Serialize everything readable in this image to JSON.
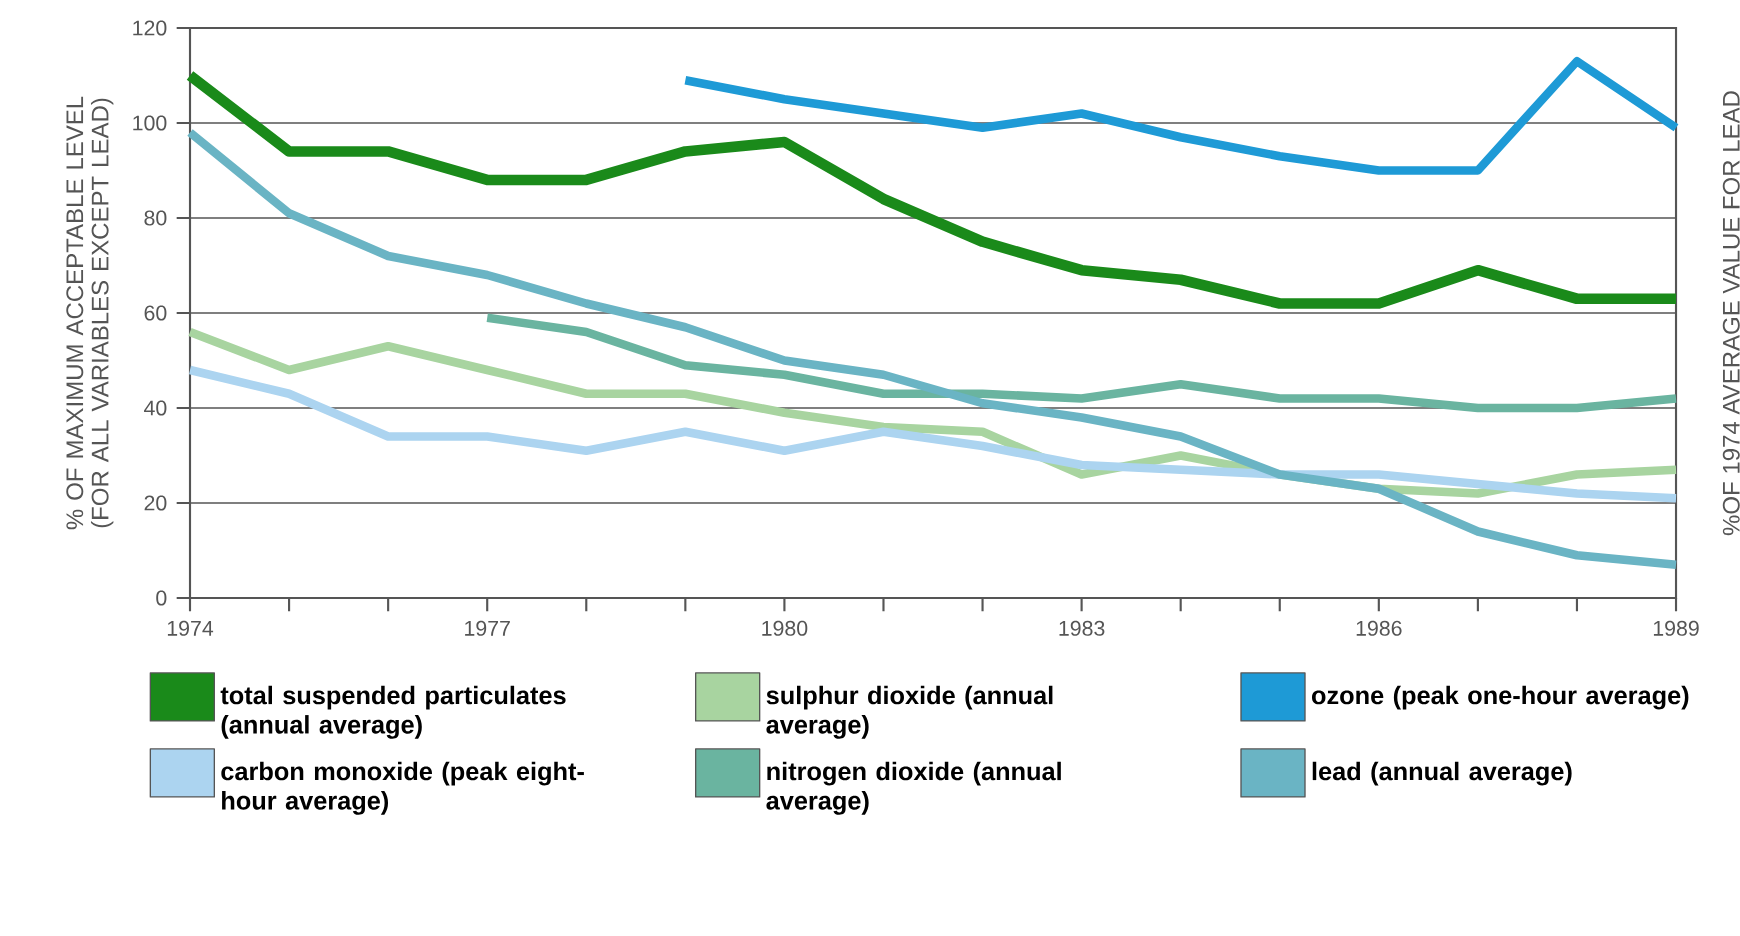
{
  "chart_data": {
    "type": "line",
    "ylabel": "% OF MAXIMUM ACCEPTABLE LEVEL (FOR ALL VARIABLES EXCEPT LEAD)",
    "y2label": "%OF 1974 AVERAGE VALUE FOR LEAD",
    "x": [
      1974,
      1975,
      1976,
      1977,
      1978,
      1979,
      1980,
      1981,
      1982,
      1983,
      1984,
      1985,
      1986,
      1987,
      1988,
      1989
    ],
    "xlim": [
      1974,
      1989
    ],
    "xticks": [
      1974,
      {
        "value": 1975,
        "label": null
      },
      {
        "value": 1976,
        "label": null
      },
      1977,
      {
        "value": 1978,
        "label": null
      },
      {
        "value": 1979,
        "label": null
      },
      1980,
      {
        "value": 1981,
        "label": null
      },
      {
        "value": 1982,
        "label": null
      },
      1983,
      {
        "value": 1984,
        "label": null
      },
      {
        "value": 1985,
        "label": null
      },
      1986,
      {
        "value": 1987,
        "label": null
      },
      {
        "value": 1988,
        "label": null
      },
      1989
    ],
    "ylim": [
      0,
      120
    ],
    "yticks": [
      0,
      20,
      40,
      60,
      80,
      100,
      120
    ],
    "grid": "y",
    "legend": "bottom",
    "marker": "none",
    "line_style": "solid",
    "series": [
      {
        "name": "total suspended particulates (annual average)",
        "color": "#1a8a1a",
        "values": [
          110,
          94,
          94,
          88,
          88,
          94,
          96,
          84,
          75,
          69,
          67,
          62,
          62,
          69,
          63,
          63
        ]
      },
      {
        "name": "sulphur dioxide (annual average)",
        "color": "#a8d4a0",
        "values": [
          56,
          48,
          53,
          48,
          43,
          43,
          39,
          36,
          35,
          26,
          30,
          26,
          23,
          22,
          26,
          27
        ]
      },
      {
        "name": "ozone (peak one-hour average)",
        "color": "#1e9ad6",
        "values": [
          null,
          null,
          null,
          null,
          null,
          109,
          105,
          102,
          99,
          102,
          97,
          93,
          90,
          90,
          113,
          99
        ]
      },
      {
        "name": "carbon monoxide (peak eight-hour average)",
        "color": "#acd4f0",
        "values": [
          48,
          43,
          34,
          34,
          31,
          35,
          31,
          35,
          32,
          28,
          27,
          26,
          26,
          24,
          22,
          21
        ]
      },
      {
        "name": "nitrogen dioxide (annual average)",
        "color": "#6ab4a0",
        "values": [
          null,
          null,
          null,
          59,
          56,
          49,
          47,
          43,
          43,
          42,
          45,
          42,
          42,
          40,
          40,
          42
        ]
      },
      {
        "name": "lead (annual average)",
        "color": "#6ab4c4",
        "values": [
          98,
          81,
          72,
          68,
          62,
          57,
          50,
          47,
          41,
          38,
          34,
          26,
          23,
          14,
          9,
          7
        ]
      }
    ]
  }
}
